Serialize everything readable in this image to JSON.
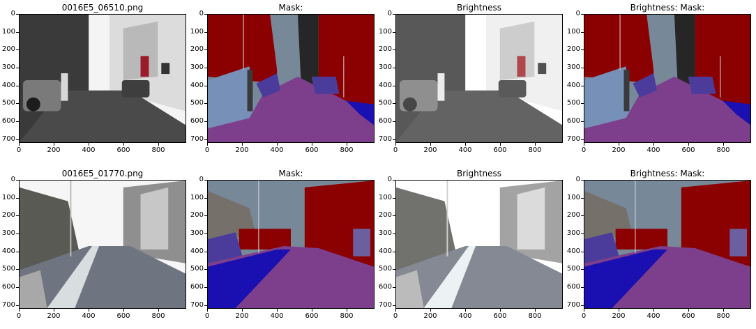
{
  "figure": {
    "rows": [
      {
        "panels": [
          {
            "title": "0016E5_06510.png",
            "kind": "photo",
            "variant": "street1"
          },
          {
            "title": "Mask:",
            "kind": "mask",
            "variant": "street1"
          },
          {
            "title": "Brightness",
            "kind": "photo",
            "variant": "street1"
          },
          {
            "title": "Brightness: Mask:",
            "kind": "mask",
            "variant": "street1"
          }
        ]
      },
      {
        "panels": [
          {
            "title": "0016E5_01770.png",
            "kind": "photo",
            "variant": "street2"
          },
          {
            "title": "Mask:",
            "kind": "mask",
            "variant": "street2"
          },
          {
            "title": "Brightness",
            "kind": "photo",
            "variant": "street2"
          },
          {
            "title": "Brightness: Mask:",
            "kind": "mask",
            "variant": "street2"
          }
        ]
      }
    ],
    "yticks": [
      "0",
      "100",
      "200",
      "300",
      "400",
      "500",
      "600",
      "700"
    ],
    "xticks": [
      "0",
      "200",
      "400",
      "600",
      "800"
    ],
    "colors": {
      "sky": "#778899",
      "building": "#8b0000",
      "road": "#7d3f8c",
      "sidewalk": "#1a0fb0",
      "car": "#4b3c9c",
      "pedestrian": "#3a3a3a",
      "tree": "#76706a",
      "dark": "#262626"
    }
  }
}
